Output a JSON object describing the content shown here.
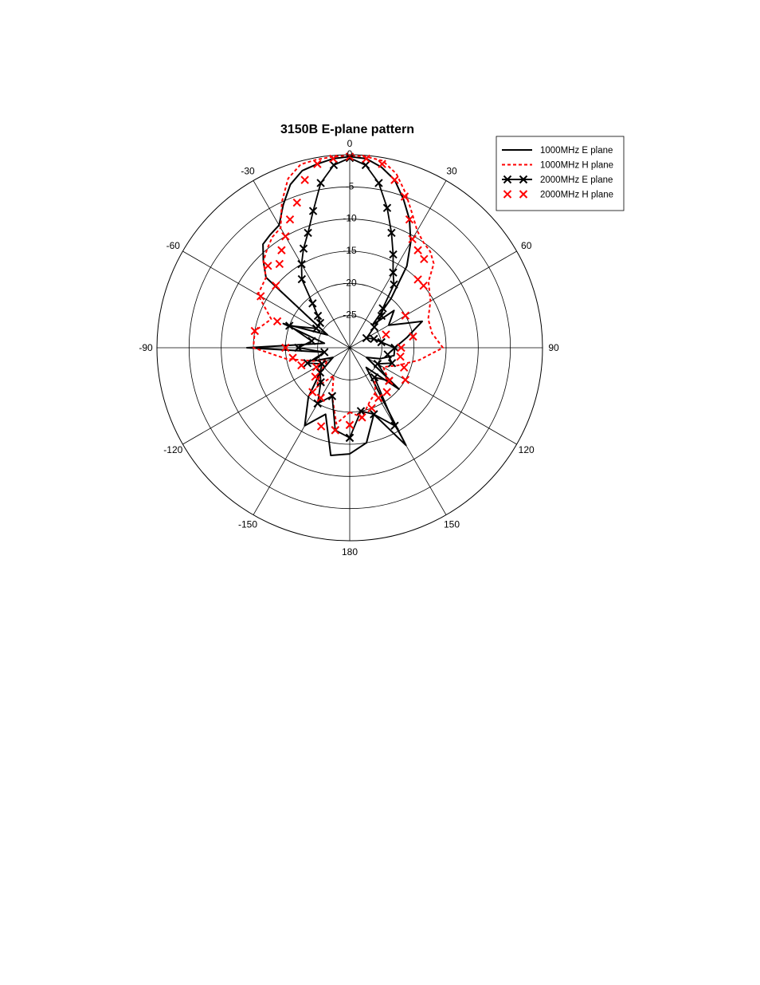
{
  "chart_data": {
    "type": "polar-line",
    "title": "3150B E-plane pattern",
    "radial_axis": {
      "range": [
        -30,
        0
      ],
      "tick_labels": [
        "0",
        "-5",
        "-10",
        "-15",
        "-20",
        "-25"
      ],
      "tick_values": [
        0,
        -5,
        -10,
        -15,
        -20,
        -25
      ]
    },
    "angular_axis": {
      "unit": "degrees",
      "zero_at": "top",
      "direction": "clockwise",
      "tick_labels": [
        "0",
        "30",
        "60",
        "90",
        "120",
        "150",
        "180",
        "-150",
        "-120",
        "-90",
        "-60",
        "-30"
      ],
      "tick_values": [
        0,
        30,
        60,
        90,
        120,
        150,
        180,
        -150,
        -120,
        -90,
        -60,
        -30
      ]
    },
    "grid": true,
    "legend_position": "top-right",
    "series": [
      {
        "name": "1000MHz E plane",
        "color": "#000000",
        "style": "solid",
        "marker": "none",
        "angles": [
          -180,
          -170,
          -160,
          -150,
          -140,
          -130,
          -120,
          -110,
          -100,
          -90,
          -80,
          -70,
          -60,
          -50,
          -45,
          -40,
          -35,
          -30,
          -25,
          -20,
          -15,
          -10,
          -5,
          0,
          5,
          10,
          15,
          20,
          25,
          30,
          35,
          40,
          45,
          50,
          60,
          70,
          80,
          90,
          100,
          110,
          120,
          130,
          140,
          150,
          160,
          170,
          180
        ],
        "values": [
          -13.5,
          -13,
          -19,
          -16,
          -20,
          -24,
          -27,
          -24,
          -26,
          -14,
          -26,
          -19,
          -26,
          -13,
          -11,
          -9,
          -8.5,
          -8,
          -5.5,
          -3,
          -1.5,
          -1,
          -0.5,
          -0.3,
          -0.5,
          -1.5,
          -3,
          -5.5,
          -8,
          -11,
          -14.5,
          -20,
          -25,
          -21,
          -23,
          -18,
          -21,
          -23,
          -23,
          -25,
          -27,
          -20,
          -26,
          -12.5,
          -19,
          -15,
          -13.5
        ]
      },
      {
        "name": "1000MHz H plane",
        "color": "#ff0000",
        "style": "dashed",
        "marker": "none",
        "angles": [
          -180,
          -170,
          -160,
          -150,
          -140,
          -130,
          -120,
          -110,
          -100,
          -90,
          -80,
          -70,
          -60,
          -50,
          -45,
          -40,
          -35,
          -30,
          -25,
          -20,
          -15,
          -10,
          -5,
          0,
          5,
          10,
          15,
          20,
          25,
          30,
          35,
          40,
          45,
          50,
          60,
          70,
          80,
          90,
          100,
          110,
          120,
          130,
          140,
          150,
          160,
          170,
          180
        ],
        "values": [
          -20,
          -18,
          -22,
          -25,
          -22,
          -24,
          -26,
          -24,
          -20,
          -15,
          -15,
          -17,
          -13.5,
          -13,
          -11,
          -10,
          -9,
          -8.5,
          -5,
          -2,
          -0.5,
          -0.3,
          -0.2,
          -0.1,
          -0.2,
          -0.5,
          -2,
          -4.5,
          -7,
          -9,
          -10,
          -10.5,
          -11.5,
          -14,
          -15.5,
          -17,
          -17,
          -15.5,
          -19,
          -22,
          -24,
          -22,
          -24,
          -22,
          -21,
          -19,
          -20
        ]
      },
      {
        "name": "2000MHz E plane",
        "color": "#000000",
        "style": "solid",
        "marker": "x",
        "angles": [
          -180,
          -170,
          -160,
          -150,
          -140,
          -130,
          -120,
          -110,
          -100,
          -90,
          -80,
          -70,
          -60,
          -50,
          -45,
          -40,
          -35,
          -30,
          -25,
          -20,
          -15,
          -10,
          -5,
          0,
          5,
          10,
          15,
          20,
          25,
          30,
          35,
          40,
          45,
          50,
          60,
          70,
          80,
          90,
          100,
          110,
          120,
          130,
          140,
          150,
          160,
          170,
          180
        ],
        "values": [
          -16,
          -17,
          -22,
          -20,
          -23,
          -24,
          -25,
          -23,
          -26,
          -22,
          -24,
          -20,
          -24,
          -24,
          -23,
          -21,
          -17,
          -15,
          -13,
          -11,
          -8,
          -4,
          -1.5,
          -0.5,
          -1.5,
          -4,
          -7.5,
          -11,
          -14,
          -16.5,
          -18,
          -22,
          -23,
          -25,
          -27,
          -26,
          -25,
          -23,
          -24,
          -23,
          -25,
          -22,
          -24,
          -16,
          -19,
          -20,
          -16
        ]
      },
      {
        "name": "2000MHz H plane",
        "color": "#ff0000",
        "style": "none",
        "marker": "x",
        "angles": [
          -180,
          -170,
          -160,
          -150,
          -140,
          -130,
          -120,
          -110,
          -100,
          -90,
          -80,
          -70,
          -60,
          -50,
          -45,
          -40,
          -35,
          -30,
          -25,
          -20,
          -15,
          -10,
          -5,
          0,
          5,
          10,
          15,
          20,
          25,
          30,
          35,
          40,
          45,
          50,
          60,
          70,
          80,
          90,
          100,
          110,
          120,
          130,
          140,
          150,
          160,
          170,
          180
        ],
        "values": [
          -18,
          -17,
          -17,
          -21,
          -21,
          -23,
          -24,
          -22,
          -21,
          -20,
          -15,
          -18,
          -14,
          -15,
          -12,
          -13,
          -11.5,
          -10,
          -8,
          -6,
          -3,
          -1,
          -0.5,
          -0.3,
          -0.5,
          -1,
          -3,
          -5,
          -8,
          -10.5,
          -11.5,
          -12,
          -15,
          -15,
          -20,
          -24,
          -20,
          -22,
          -22,
          -21,
          -20,
          -22,
          -21,
          -21,
          -20,
          -19,
          -18
        ]
      }
    ]
  }
}
